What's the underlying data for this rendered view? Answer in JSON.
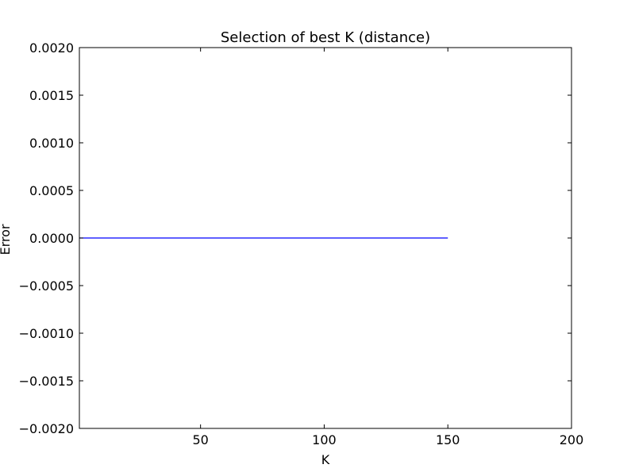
{
  "chart_data": {
    "type": "line",
    "title": "Selection of best K (distance)",
    "xlabel": "K",
    "ylabel": "Error",
    "xlim": [
      1,
      200
    ],
    "ylim": [
      -0.002,
      0.002
    ],
    "x_ticks": [
      50,
      100,
      150,
      200
    ],
    "x_tick_labels": [
      "50",
      "100",
      "150",
      "200"
    ],
    "y_ticks": [
      0.002,
      0.0015,
      0.001,
      0.0005,
      0,
      -0.0005,
      -0.001,
      -0.0015,
      -0.002
    ],
    "y_tick_labels": [
      "0.0020",
      "0.0015",
      "0.0010",
      "0.0005",
      "0.0000",
      "−0.0005",
      "−0.0010",
      "−0.0015",
      "−0.0020"
    ],
    "grid": false,
    "series": [
      {
        "color": "#0000ff",
        "x": [
          1,
          150
        ],
        "y": [
          0,
          0
        ]
      }
    ]
  }
}
